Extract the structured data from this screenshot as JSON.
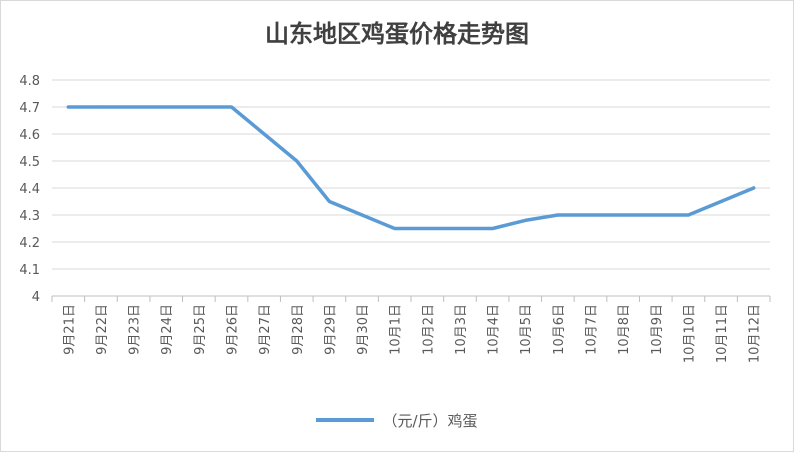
{
  "chart_data": {
    "type": "line",
    "title": "山东地区鸡蛋价格走势图",
    "categories": [
      "9月21日",
      "9月22日",
      "9月23日",
      "9月24日",
      "9月25日",
      "9月26日",
      "9月27日",
      "9月28日",
      "9月29日",
      "9月30日",
      "10月1日",
      "10月2日",
      "10月3日",
      "10月4日",
      "10月5日",
      "10月6日",
      "10月7日",
      "10月8日",
      "10月9日",
      "10月10日",
      "10月11日",
      "10月12日"
    ],
    "series": [
      {
        "name": "（元/斤）鸡蛋",
        "values": [
          4.7,
          4.7,
          4.7,
          4.7,
          4.7,
          4.7,
          4.6,
          4.5,
          4.35,
          4.3,
          4.25,
          4.25,
          4.25,
          4.25,
          4.28,
          4.3,
          4.3,
          4.3,
          4.3,
          4.3,
          4.35,
          4.4
        ],
        "color": "#5b9bd5"
      }
    ],
    "ylim": [
      4,
      4.8
    ],
    "yticks": [
      "4",
      "4.1",
      "4.2",
      "4.3",
      "4.4",
      "4.5",
      "4.6",
      "4.7",
      "4.8"
    ],
    "grid": true,
    "legend_position": "bottom"
  }
}
